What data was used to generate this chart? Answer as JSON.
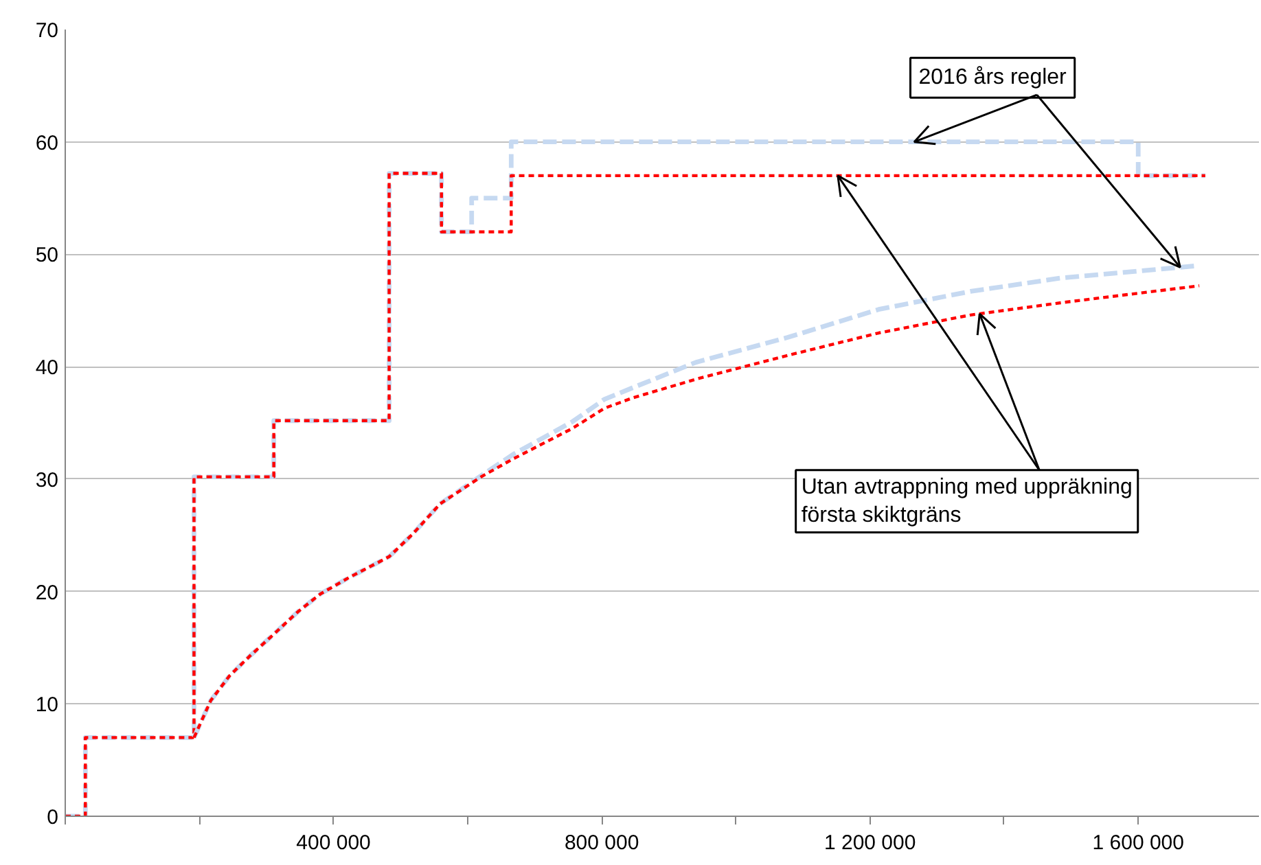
{
  "chart_data": {
    "type": "step",
    "series": [
      {
        "color": "#c6d9f1",
        "line_style": "dashed",
        "x": [
          0,
          30000,
          192000,
          311000,
          483000,
          561000,
          606000,
          665000,
          1600000,
          1700000
        ],
        "values": [
          0,
          7,
          30.2,
          35.2,
          57.2,
          52,
          55,
          60,
          57,
          57
        ]
      },
      {
        "color": "#ff0000",
        "line_style": "dotted",
        "x": [
          0,
          30000,
          192000,
          311000,
          483000,
          561000,
          665000,
          1700000
        ],
        "values": [
          0,
          7,
          30.2,
          35.2,
          57.2,
          52,
          57,
          57
        ]
      },
      {
        "type": "line",
        "color": "#c6d9f1",
        "line_style": "dashed",
        "x": [
          192000,
          217000,
          245000,
          276000,
          311000,
          347000,
          381000,
          422000,
          483000,
          518000,
          559000,
          620000,
          668000,
          756000,
          804000,
          845000,
          941000,
          1077000,
          1213000,
          1350000,
          1486000,
          1691000
        ],
        "values": [
          7,
          10.3,
          12.5,
          14.3,
          16.2,
          18.2,
          19.8,
          21.2,
          23.1,
          25.1,
          27.8,
          30.3,
          32.2,
          35.1,
          37.1,
          38.1,
          40.4,
          42.6,
          45.1,
          46.7,
          47.9,
          49
        ]
      },
      {
        "type": "line",
        "color": "#ff0000",
        "line_style": "dotted",
        "x": [
          192000,
          217000,
          245000,
          276000,
          311000,
          347000,
          381000,
          422000,
          483000,
          518000,
          559000,
          620000,
          668000,
          756000,
          804000,
          845000,
          941000,
          1077000,
          1213000,
          1350000,
          1486000,
          1691000
        ],
        "values": [
          7,
          10.3,
          12.5,
          14.3,
          16.2,
          18.2,
          19.8,
          21.2,
          23.1,
          25.1,
          27.8,
          30.2,
          31.8,
          34.5,
          36.3,
          37.2,
          38.9,
          41,
          43,
          44.6,
          45.7,
          47.2
        ]
      }
    ],
    "xlim": [
      0,
      1780000
    ],
    "ylim": [
      0,
      70
    ],
    "xticks": [
      {
        "value": 0,
        "label": null
      },
      {
        "value": 200000,
        "label": null
      },
      {
        "value": 400000,
        "label": "400 000"
      },
      {
        "value": 600000,
        "label": null
      },
      {
        "value": 800000,
        "label": "800 000"
      },
      {
        "value": 1000000,
        "label": null
      },
      {
        "value": 1200000,
        "label": "1 200 000"
      },
      {
        "value": 1400000,
        "label": null
      },
      {
        "value": 1600000,
        "label": "1 600 000"
      }
    ],
    "yticks": [
      0,
      10,
      20,
      30,
      40,
      50,
      60,
      70
    ],
    "grid": "y",
    "marker": "none",
    "annotations": [
      {
        "text": "2016 års regler",
        "x": 1266000,
        "y": 60
      },
      {
        "text": "Utan avtrappning med uppräkning\nförsta skiktgräns",
        "x": 1152000,
        "y": 57
      }
    ]
  }
}
